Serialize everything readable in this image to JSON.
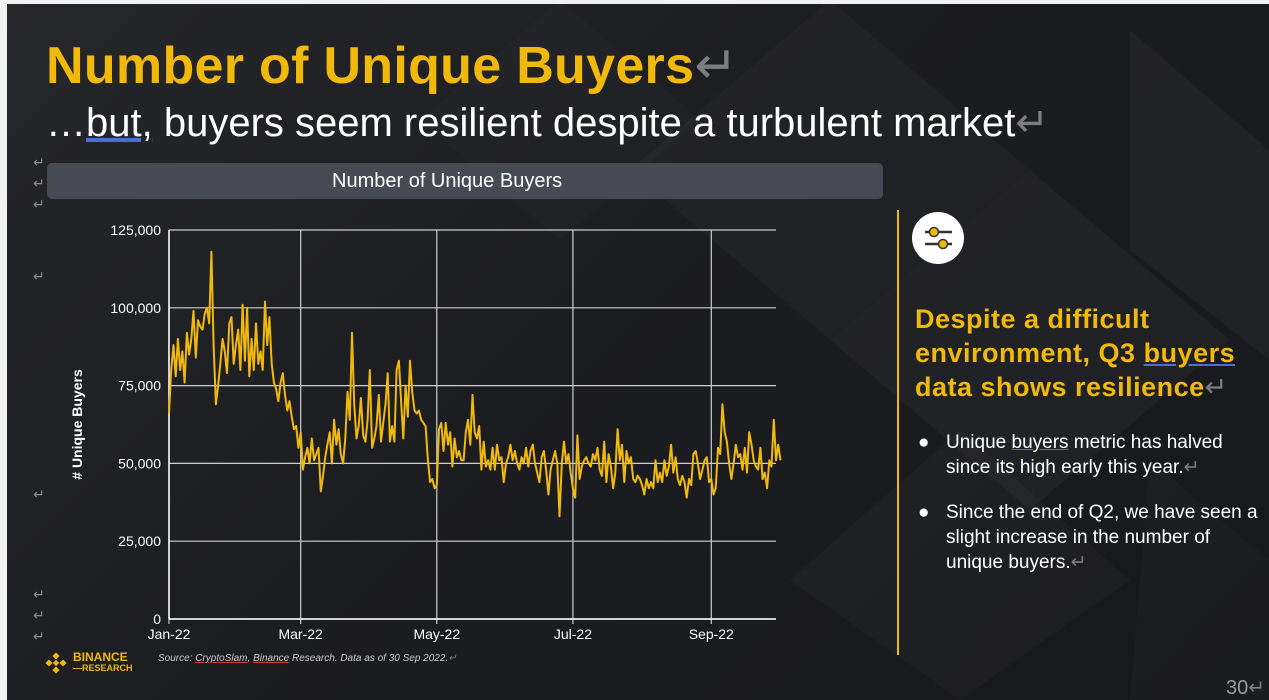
{
  "slide": {
    "title": "Number of Unique Buyers",
    "subtitle_prefix": "…",
    "subtitle_underlined": "but,",
    "subtitle_rest": " buyers seem resilient despite a turbulent market",
    "return_mark": "↵",
    "page_number": "30",
    "source_note_underlined_1": "CryptoSlam",
    "source_note_underlined_2": "Binance",
    "source_note_prefix": "Source: ",
    "source_note_middle": ", ",
    "source_note_suffix": " Research. Data as of 30 Sep 2022.",
    "logo_line1": "BINANCE",
    "logo_line2": "—RESEARCH"
  },
  "panel": {
    "icon": "sliders-icon",
    "headline_line1": "Despite a difficult",
    "headline_line2_a": "environment, Q3",
    "headline_line2_b": "buyers",
    "headline_line3": "data shows resilience",
    "bullets": [
      {
        "pre": "Unique ",
        "ul": "buyers",
        "post": " metric has halved since its high early this year."
      },
      {
        "pre": "Since the end of Q2, we have seen a slight increase in the number of unique buyers.",
        "ul": "",
        "post": ""
      }
    ]
  },
  "colors": {
    "accent": "#f0b90b",
    "background": "#1c1d21",
    "header_bar": "#474a52"
  },
  "chart_data": {
    "type": "line",
    "title": "Number of Unique Buyers",
    "xlabel": "",
    "ylabel": "# Unique Buyers",
    "ylim": [
      0,
      125000
    ],
    "yticks": [
      0,
      25000,
      50000,
      75000,
      100000,
      125000
    ],
    "ytick_labels": [
      "0",
      "25,000",
      "50,000",
      "75,000",
      "100,000",
      "125,000"
    ],
    "xticks": [
      0,
      59,
      120,
      181,
      243
    ],
    "xtick_labels": [
      "Jan-22",
      "Mar-22",
      "May-22",
      "Jul-22",
      "Sep-22"
    ],
    "x_range": [
      0,
      272
    ],
    "series_color": "#f0b90b",
    "series": [
      {
        "name": "Unique Buyers",
        "values": [
          66000,
          80000,
          88000,
          78000,
          90000,
          80000,
          86000,
          76000,
          92000,
          85000,
          90000,
          99000,
          84000,
          96000,
          94000,
          93000,
          98000,
          100000,
          95000,
          118000,
          88000,
          69000,
          75000,
          82000,
          90000,
          86000,
          79000,
          95000,
          97000,
          82000,
          88000,
          93000,
          80000,
          101000,
          83000,
          100000,
          78000,
          90000,
          80000,
          95000,
          82000,
          86000,
          80000,
          102000,
          88000,
          97000,
          82000,
          76000,
          74000,
          70000,
          76000,
          79000,
          72000,
          67000,
          70000,
          65000,
          61000,
          62000,
          55000,
          60000,
          48000,
          52000,
          55000,
          50000,
          58000,
          51000,
          53000,
          55000,
          41000,
          46000,
          52000,
          56000,
          60000,
          50000,
          64000,
          56000,
          61000,
          53000,
          50000,
          58000,
          73000,
          64000,
          92000,
          69000,
          58000,
          62000,
          71000,
          59000,
          57000,
          64000,
          80000,
          55000,
          58000,
          62000,
          72000,
          57000,
          63000,
          69000,
          79000,
          57000,
          62000,
          57000,
          80000,
          83000,
          70000,
          58000,
          75000,
          65000,
          83000,
          73000,
          67000,
          66000,
          67000,
          64000,
          63000,
          62000,
          51000,
          44000,
          45000,
          42000,
          43000,
          61000,
          63000,
          54000,
          63000,
          56000,
          60000,
          49000,
          58000,
          52000,
          54000,
          51000,
          51000,
          60000,
          64000,
          56000,
          72000,
          60000,
          58000,
          62000,
          48000,
          57000,
          49000,
          51000,
          48000,
          55000,
          48000,
          56000,
          51000,
          52000,
          44000,
          50000,
          52000,
          56000,
          51000,
          54000,
          50000,
          48000,
          52000,
          50000,
          55000,
          49000,
          54000,
          56000,
          50000,
          47000,
          44000,
          52000,
          54000,
          48000,
          40000,
          48000,
          51000,
          54000,
          50000,
          33000,
          50000,
          57000,
          50000,
          53000,
          47000,
          42000,
          39000,
          59000,
          45000,
          49000,
          51000,
          52000,
          50000,
          49000,
          53000,
          51000,
          55000,
          48000,
          46000,
          57000,
          44000,
          53000,
          49000,
          42000,
          47000,
          61000,
          51000,
          56000,
          44000,
          54000,
          50000,
          52000,
          45000,
          44000,
          46000,
          45000,
          43000,
          40000,
          45000,
          42000,
          44000,
          42000,
          51000,
          44000,
          47000,
          44000,
          51000,
          46000,
          49000,
          56000,
          47000,
          52000,
          45000,
          43000,
          46000,
          44000,
          39000,
          45000,
          43000,
          53000,
          54000,
          50000,
          45000,
          48000,
          51000,
          52000,
          44000,
          45000,
          40000,
          42000,
          55000,
          53000,
          69000,
          60000,
          57000,
          50000,
          45000,
          50000,
          56000,
          52000,
          53000,
          48000,
          55000,
          47000,
          60000,
          56000,
          51000,
          49000,
          48000,
          55000,
          45000,
          47000,
          42000,
          51000,
          49000,
          64000,
          51000,
          56000,
          51000
        ]
      }
    ]
  }
}
